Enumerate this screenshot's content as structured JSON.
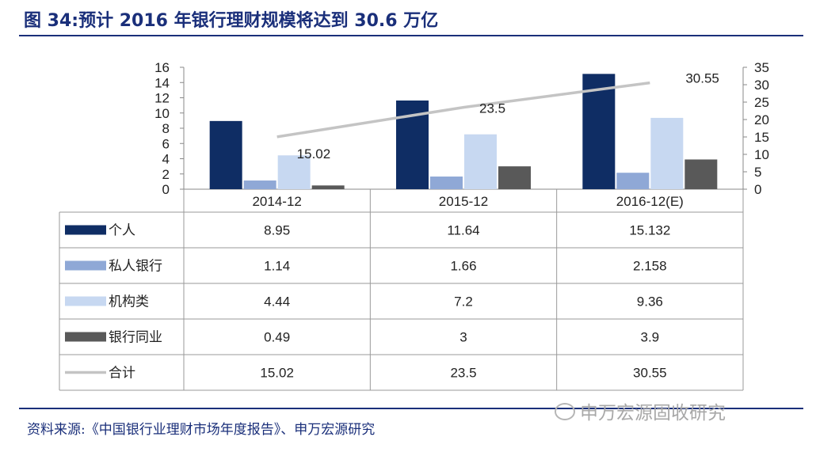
{
  "title": "图 34:预计 2016 年银行理财规模将达到 30.6 万亿",
  "source": "资料来源:《中国银行业理财市场年度报告》、申万宏源研究",
  "watermark": "申万宏源固收研究",
  "colors": {
    "title": "#1a2f7a",
    "个人": "#0f2d64",
    "私人银行": "#8fa8d6",
    "机构类": "#c7d8f1",
    "银行同业": "#595959",
    "合计": "#c4c4c4"
  },
  "chart_data": {
    "type": "bar",
    "title": "预计 2016 年银行理财规模将达到 30.6 万亿",
    "categories": [
      "2014-12",
      "2015-12",
      "2016-12(E)"
    ],
    "series": [
      {
        "name": "个人",
        "axis": "left",
        "values": [
          8.95,
          11.64,
          15.132
        ],
        "labels": [
          "8.95",
          "11.64",
          "15.132"
        ]
      },
      {
        "name": "私人银行",
        "axis": "left",
        "values": [
          1.14,
          1.66,
          2.158
        ],
        "labels": [
          "1.14",
          "1.66",
          "2.158"
        ]
      },
      {
        "name": "机构类",
        "axis": "left",
        "values": [
          4.44,
          7.2,
          9.36
        ],
        "labels": [
          "4.44",
          "7.2",
          "9.36"
        ]
      },
      {
        "name": "银行同业",
        "axis": "left",
        "values": [
          0.49,
          3,
          3.9
        ],
        "labels": [
          "0.49",
          "3",
          "3.9"
        ]
      },
      {
        "name": "合计",
        "axis": "right",
        "type": "line",
        "values": [
          15.02,
          23.5,
          30.55
        ],
        "labels": [
          "15.02",
          "23.5",
          "30.55"
        ]
      }
    ],
    "y_left": {
      "range": [
        0,
        16
      ],
      "ticks": [
        "0",
        "2",
        "4",
        "6",
        "8",
        "10",
        "12",
        "14",
        "16"
      ]
    },
    "y_right": {
      "range": [
        0,
        35
      ],
      "ticks": [
        "0",
        "5",
        "10",
        "15",
        "20",
        "25",
        "30",
        "35"
      ]
    },
    "grid": false,
    "legend": "data-table"
  }
}
